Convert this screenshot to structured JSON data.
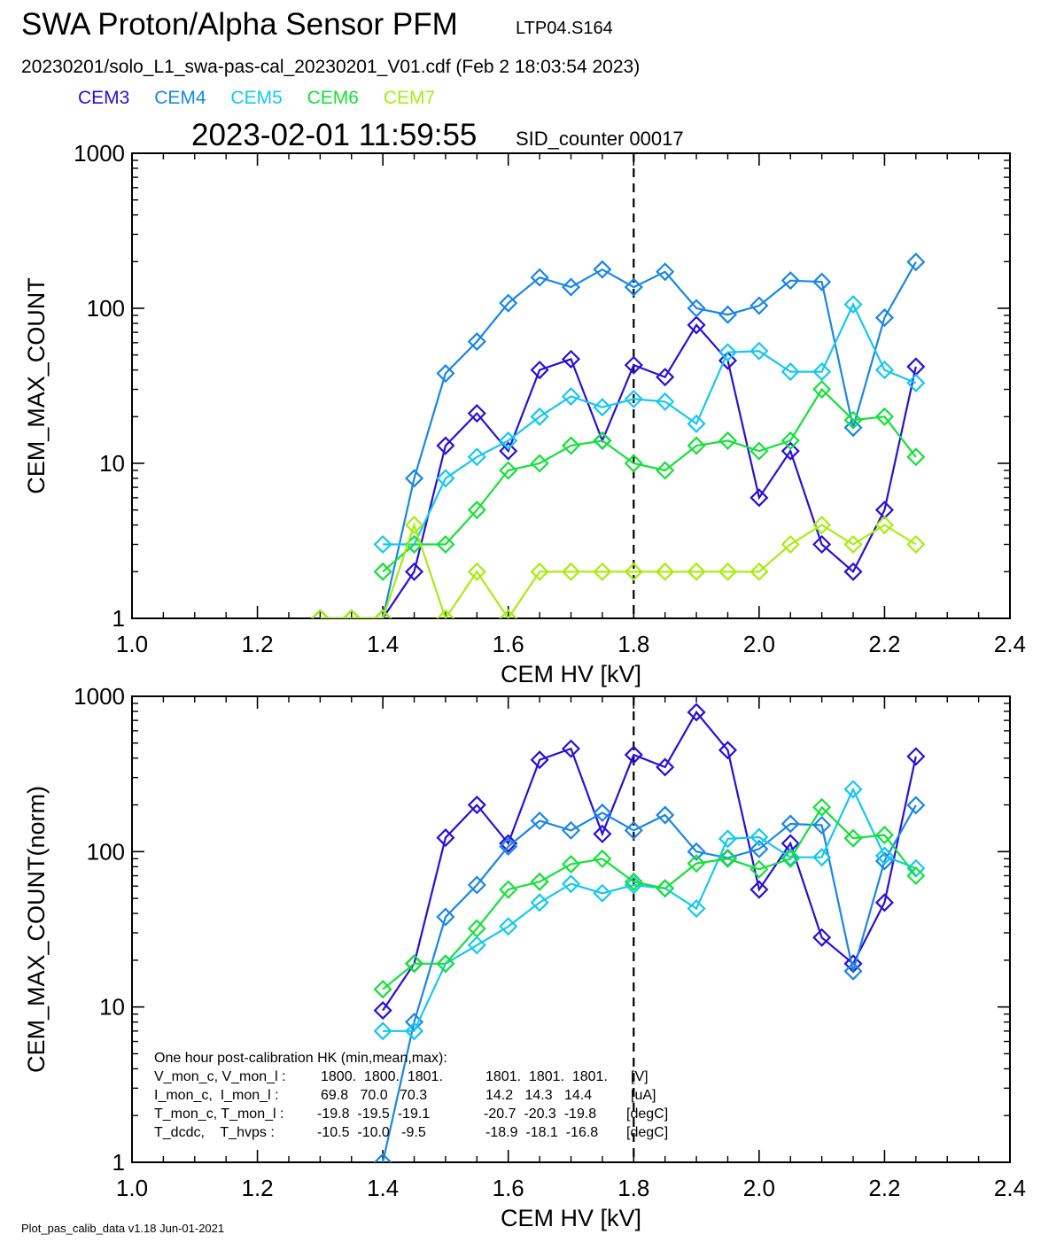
{
  "header": {
    "title": "SWA Proton/Alpha Sensor PFM",
    "run_id": "LTP04.S164",
    "file_line": "20230201/solo_L1_swa-pas-cal_20230201_V01.cdf  (Feb  2 18:03:54 2023)",
    "timestamp": "2023-02-01 11:59:55",
    "sid_counter": "SID_counter 00017"
  },
  "footer": "Plot_pas_calib_data v1.18 Jun-01-2021",
  "legend": [
    {
      "name": "CEM3",
      "color": "#2a0fd6"
    },
    {
      "name": "CEM4",
      "color": "#1a86e6"
    },
    {
      "name": "CEM5",
      "color": "#16c8ee"
    },
    {
      "name": "CEM6",
      "color": "#16e03a"
    },
    {
      "name": "CEM7",
      "color": "#a8ec12"
    }
  ],
  "hk_box": {
    "heading": "One hour post-calibration HK (min,mean,max):",
    "rows": [
      {
        "label": "V_mon_c, V_mon_l :",
        "c": "1800.  1800.  1801.",
        "l": "1801.  1801.  1801.",
        "unit": "[V]"
      },
      {
        "label": "I_mon_c,  I_mon_l :",
        "c": "69.8   70.0   70.3",
        "l": "14.2   14.3   14.4",
        "unit": "[uA]"
      },
      {
        "label": "T_mon_c, T_mon_l :",
        "c": "-19.8  -19.5  -19.1",
        "l": "-20.7  -20.3  -19.8",
        "unit": "[degC]"
      },
      {
        "label": "T_dcdc,    T_hvps :",
        "c": "-10.5  -10.0   -9.5",
        "l": "-18.9  -18.1  -16.8",
        "unit": "[degC]"
      }
    ]
  },
  "chart_data": [
    {
      "type": "line",
      "title": "",
      "xlabel": "CEM HV [kV]",
      "ylabel": "CEM_MAX_COUNT",
      "xlim": [
        1.0,
        2.4
      ],
      "ylim": [
        1,
        1000
      ],
      "yscale": "log",
      "x_ticks": [
        1.0,
        1.2,
        1.4,
        1.6,
        1.8,
        2.0,
        2.2,
        2.4
      ],
      "x_tick_labels": [
        "1.0",
        "1.2",
        "1.4",
        "1.6",
        "1.8",
        "2.0",
        "2.2",
        "2.4"
      ],
      "y_ticks": [
        1,
        10,
        100,
        1000
      ],
      "y_tick_labels": [
        "1",
        "10",
        "100",
        "1000"
      ],
      "vline_x": 1.8,
      "marker": "diamond",
      "series": [
        {
          "name": "CEM3",
          "color": "#2a0fd6",
          "x": [
            1.3,
            1.35,
            1.4,
            1.45,
            1.5,
            1.55,
            1.6,
            1.65,
            1.7,
            1.75,
            1.8,
            1.85,
            1.9,
            1.95,
            2.0,
            2.05,
            2.1,
            2.15,
            2.2,
            2.25
          ],
          "y": [
            1,
            1,
            1,
            2,
            13,
            21,
            12,
            40,
            47,
            14,
            43,
            36,
            78,
            46,
            6,
            12,
            3,
            2,
            5,
            42
          ]
        },
        {
          "name": "CEM4",
          "color": "#1a86e6",
          "x": [
            1.3,
            1.35,
            1.4,
            1.45,
            1.5,
            1.55,
            1.6,
            1.65,
            1.7,
            1.75,
            1.8,
            1.85,
            1.9,
            1.95,
            2.0,
            2.05,
            2.1,
            2.15,
            2.2,
            2.25
          ],
          "y": [
            1,
            1,
            1,
            8,
            38,
            61,
            108,
            158,
            137,
            178,
            137,
            172,
            100,
            91,
            104,
            151,
            148,
            17,
            87,
            199
          ]
        },
        {
          "name": "CEM5",
          "color": "#16c8ee",
          "x": [
            1.4,
            1.45,
            1.5,
            1.55,
            1.6,
            1.65,
            1.7,
            1.75,
            1.8,
            1.85,
            1.9,
            1.95,
            2.0,
            2.05,
            2.1,
            2.15,
            2.2,
            2.25
          ],
          "y": [
            3,
            3,
            8,
            11,
            14,
            20,
            27,
            23,
            26,
            25,
            18,
            52,
            53,
            39,
            39,
            106,
            40,
            33
          ]
        },
        {
          "name": "CEM6",
          "color": "#16e03a",
          "x": [
            1.4,
            1.45,
            1.5,
            1.55,
            1.6,
            1.65,
            1.7,
            1.75,
            1.8,
            1.85,
            1.9,
            1.95,
            2.0,
            2.05,
            2.1,
            2.15,
            2.2,
            2.25
          ],
          "y": [
            2,
            3,
            3,
            5,
            9,
            10,
            13,
            14,
            10,
            9,
            13,
            14,
            12,
            14,
            30,
            19,
            20,
            11
          ]
        },
        {
          "name": "CEM7",
          "color": "#a8ec12",
          "x": [
            1.3,
            1.35,
            1.4,
            1.45,
            1.5,
            1.55,
            1.6,
            1.65,
            1.7,
            1.75,
            1.8,
            1.85,
            1.9,
            1.95,
            2.0,
            2.05,
            2.1,
            2.15,
            2.2,
            2.25
          ],
          "y": [
            1,
            1,
            1,
            4,
            1,
            2,
            1,
            2,
            2,
            2,
            2,
            2,
            2,
            2,
            2,
            3,
            4,
            3,
            4,
            3
          ]
        }
      ]
    },
    {
      "type": "line",
      "title": "",
      "xlabel": "CEM HV [kV]",
      "ylabel": "CEM_MAX_COUNT(norm)",
      "xlim": [
        1.0,
        2.4
      ],
      "ylim": [
        1,
        1000
      ],
      "yscale": "log",
      "x_ticks": [
        1.0,
        1.2,
        1.4,
        1.6,
        1.8,
        2.0,
        2.2,
        2.4
      ],
      "x_tick_labels": [
        "1.0",
        "1.2",
        "1.4",
        "1.6",
        "1.8",
        "2.0",
        "2.2",
        "2.4"
      ],
      "y_ticks": [
        1,
        10,
        100,
        1000
      ],
      "y_tick_labels": [
        "1",
        "10",
        "100",
        "1000"
      ],
      "vline_x": 1.8,
      "marker": "diamond",
      "series": [
        {
          "name": "CEM3",
          "color": "#2a0fd6",
          "x": [
            1.4,
            1.45,
            1.5,
            1.55,
            1.6,
            1.65,
            1.7,
            1.75,
            1.8,
            1.85,
            1.9,
            1.95,
            2.0,
            2.05,
            2.1,
            2.15,
            2.2,
            2.25
          ],
          "y": [
            9.5,
            19,
            123,
            200,
            113,
            390,
            460,
            130,
            420,
            350,
            790,
            450,
            57,
            113,
            28,
            19,
            47,
            410
          ]
        },
        {
          "name": "CEM4",
          "color": "#1a86e6",
          "x": [
            1.4,
            1.45,
            1.5,
            1.55,
            1.6,
            1.65,
            1.7,
            1.75,
            1.8,
            1.85,
            1.9,
            1.95,
            2.0,
            2.05,
            2.1,
            2.15,
            2.2,
            2.25
          ],
          "y": [
            1,
            8,
            38,
            61,
            108,
            158,
            137,
            178,
            137,
            172,
            100,
            91,
            104,
            151,
            148,
            17,
            87,
            199
          ]
        },
        {
          "name": "CEM5",
          "color": "#16c8ee",
          "x": [
            1.4,
            1.45,
            1.5,
            1.55,
            1.6,
            1.65,
            1.7,
            1.75,
            1.8,
            1.85,
            1.9,
            1.95,
            2.0,
            2.05,
            2.1,
            2.15,
            2.2,
            2.25
          ],
          "y": [
            7,
            7,
            19,
            25,
            33,
            47,
            62,
            54,
            61,
            58,
            43,
            121,
            124,
            92,
            92,
            252,
            94,
            78
          ]
        },
        {
          "name": "CEM6",
          "color": "#16e03a",
          "x": [
            1.4,
            1.45,
            1.5,
            1.55,
            1.6,
            1.65,
            1.7,
            1.75,
            1.8,
            1.85,
            1.9,
            1.95,
            2.0,
            2.05,
            2.1,
            2.15,
            2.2,
            2.25
          ],
          "y": [
            13,
            19,
            19,
            32,
            57,
            64,
            83,
            90,
            64,
            58,
            84,
            90,
            77,
            90,
            193,
            122,
            128,
            70
          ]
        }
      ]
    }
  ]
}
